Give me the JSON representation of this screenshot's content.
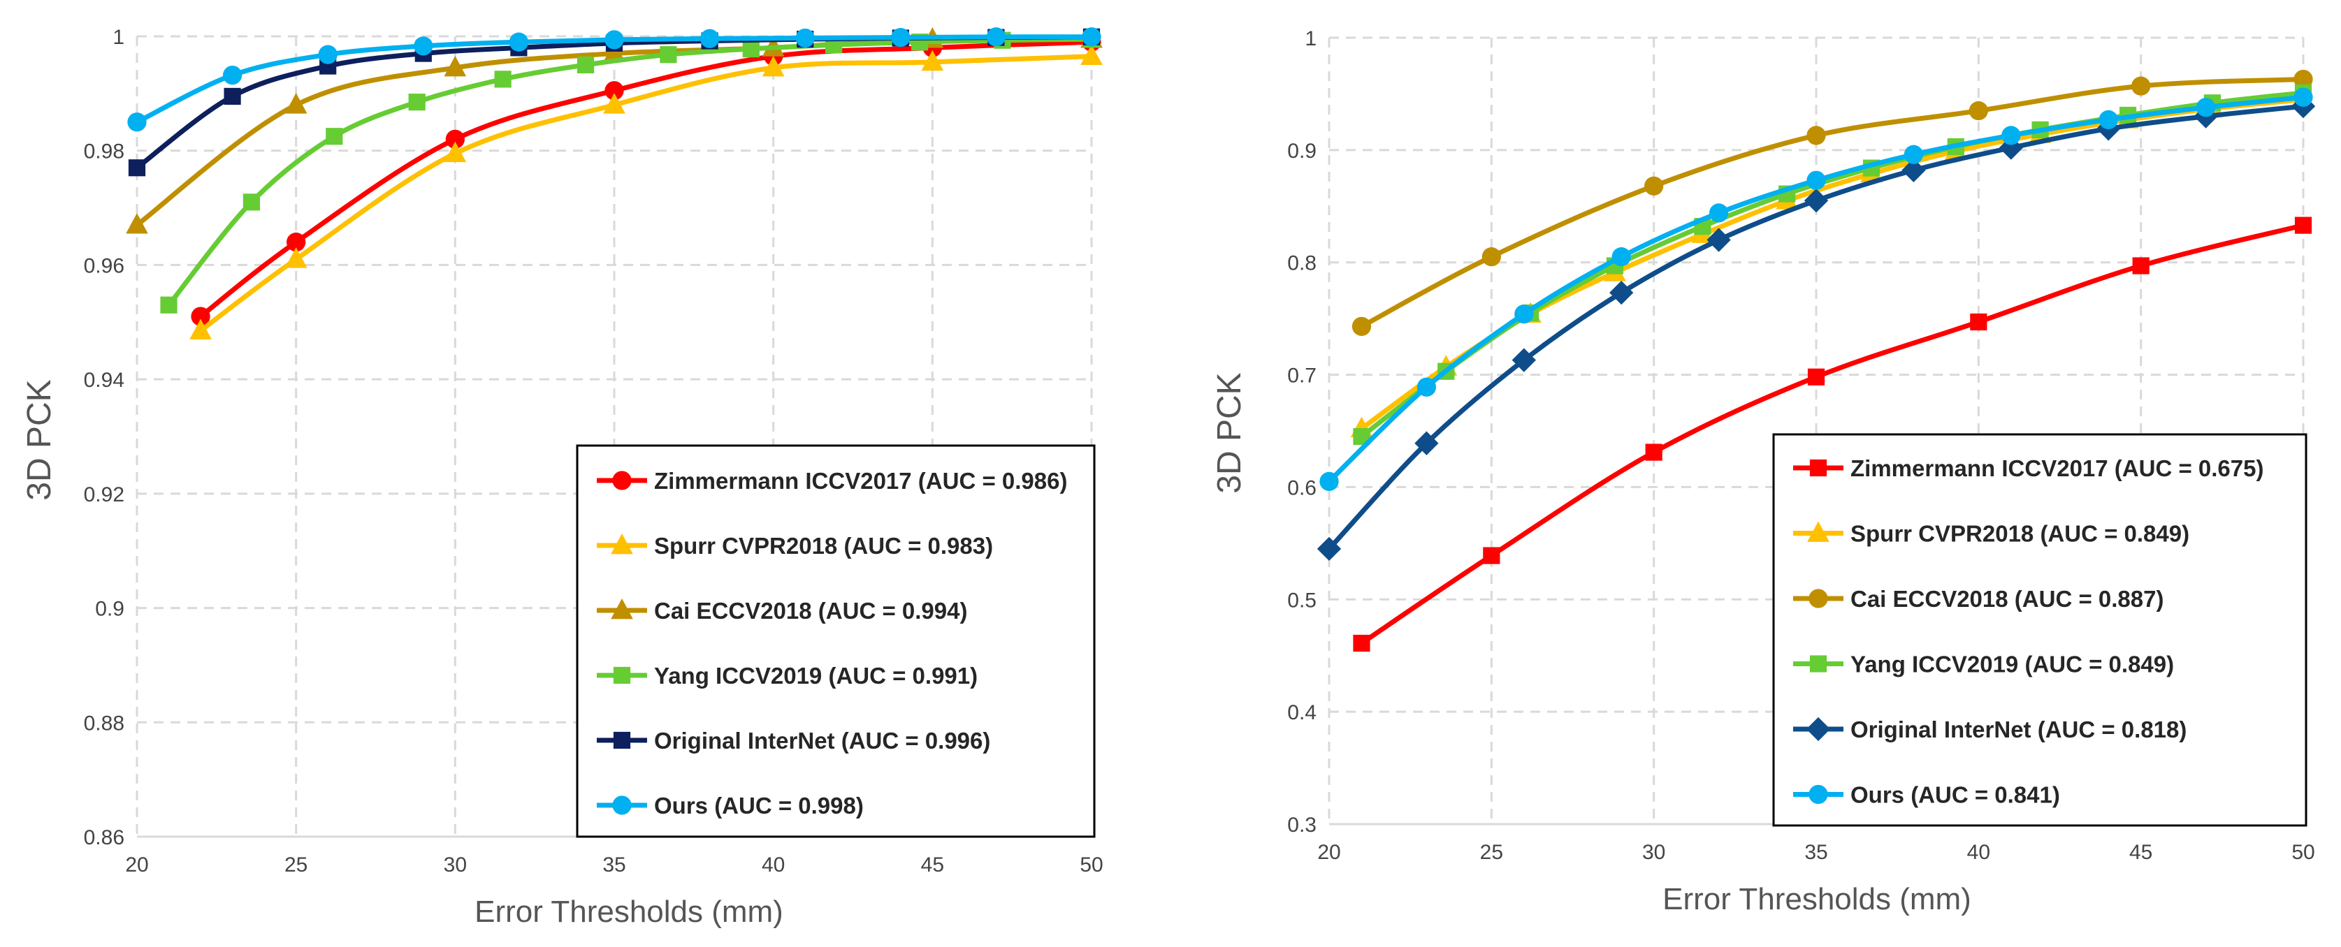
{
  "chart_data": [
    {
      "type": "line",
      "title": "",
      "xlabel": "Error Thresholds (mm)",
      "ylabel": "3D PCK",
      "xlim": [
        20,
        50
      ],
      "ylim": [
        0.86,
        1
      ],
      "xticks": [
        20,
        25,
        30,
        35,
        40,
        45,
        50
      ],
      "yticks": [
        0.86,
        0.88,
        0.9,
        0.92,
        0.94,
        0.96,
        0.98,
        1
      ],
      "ytick_labels": [
        "0.86",
        "0.88",
        "0.9",
        "0.92",
        "0.94",
        "0.96",
        "0.98",
        "1"
      ],
      "grid": true,
      "legend_position": "bottom-right",
      "series": [
        {
          "name": "Zimmermann  ICCV2017 (AUC = 0.986)",
          "color": "#ff0000",
          "marker": "circle",
          "x": [
            22,
            25,
            30,
            35,
            40,
            45,
            50
          ],
          "y": [
            0.951,
            0.964,
            0.982,
            0.9905,
            0.9965,
            0.998,
            0.999
          ]
        },
        {
          "name": "Spurr  CVPR2018 (AUC = 0.983)",
          "color": "#ffc000",
          "marker": "triangle",
          "x": [
            22,
            25,
            30,
            35,
            40,
            45,
            50
          ],
          "y": [
            0.9485,
            0.961,
            0.9795,
            0.988,
            0.9945,
            0.9955,
            0.9965
          ]
        },
        {
          "name": "Cai  ECCV2018 (AUC = 0.994)",
          "color": "#bf8f00",
          "marker": "triangle",
          "x": [
            20,
            25,
            30,
            35,
            40,
            45,
            50
          ],
          "y": [
            0.967,
            0.988,
            0.9945,
            0.997,
            0.998,
            0.9995,
            0.9995
          ]
        },
        {
          "name": "Yang  ICCV2019 (AUC = 0.991)",
          "color": "#66cc33",
          "marker": "square",
          "x": [
            21,
            23.6,
            26.2,
            28.8,
            31.5,
            34.1,
            36.7,
            39.3,
            41.9,
            44.6,
            47.2,
            50
          ],
          "y": [
            0.953,
            0.971,
            0.9825,
            0.9885,
            0.9925,
            0.995,
            0.9968,
            0.9978,
            0.9985,
            0.999,
            0.9993,
            0.9995
          ]
        },
        {
          "name": "Original InterNet (AUC = 0.996)",
          "color": "#0d1f5c",
          "marker": "square",
          "x": [
            20,
            23,
            26,
            29,
            32,
            35,
            38,
            41,
            44,
            47,
            50
          ],
          "y": [
            0.977,
            0.9895,
            0.9948,
            0.997,
            0.998,
            0.9988,
            0.9992,
            0.9995,
            0.9997,
            0.9998,
            0.9999
          ]
        },
        {
          "name": "Ours (AUC = 0.998)",
          "color": "#00b0f0",
          "marker": "circle",
          "x": [
            20,
            23,
            26,
            29,
            32,
            35,
            38,
            41,
            44,
            47,
            50
          ],
          "y": [
            0.985,
            0.9932,
            0.9968,
            0.9983,
            0.999,
            0.9994,
            0.9996,
            0.9997,
            0.9998,
            0.9999,
            0.9999
          ]
        }
      ]
    },
    {
      "type": "line",
      "title": "",
      "xlabel": "Error Thresholds (mm)",
      "ylabel": "3D PCK",
      "xlim": [
        20,
        50
      ],
      "ylim": [
        0.3,
        1
      ],
      "xticks": [
        20,
        25,
        30,
        35,
        40,
        45,
        50
      ],
      "yticks": [
        0.3,
        0.4,
        0.5,
        0.6,
        0.7,
        0.8,
        0.9,
        1
      ],
      "ytick_labels": [
        "0.3",
        "0.4",
        "0.5",
        "0.6",
        "0.7",
        "0.8",
        "0.9",
        "1"
      ],
      "grid": true,
      "legend_position": "bottom-right",
      "series": [
        {
          "name": "Zimmermann  ICCV2017 (AUC = 0.675)",
          "color": "#ff0000",
          "marker": "square",
          "x": [
            21,
            25,
            30,
            35,
            40,
            45,
            50
          ],
          "y": [
            0.461,
            0.539,
            0.631,
            0.698,
            0.747,
            0.797,
            0.833
          ]
        },
        {
          "name": "Spurr  CVPR2018 (AUC = 0.849)",
          "color": "#ffc000",
          "marker": "triangle",
          "x": [
            21,
            23.6,
            26.2,
            28.8,
            31.5,
            34.1,
            36.7,
            39.3,
            41.9,
            44.6,
            47.2,
            50
          ],
          "y": [
            0.652,
            0.707,
            0.754,
            0.791,
            0.825,
            0.855,
            0.879,
            0.899,
            0.914,
            0.927,
            0.937,
            0.945
          ]
        },
        {
          "name": "Cai  ECCV2018 (AUC = 0.887)",
          "color": "#bf8f00",
          "marker": "circle",
          "x": [
            21,
            25,
            30,
            35,
            40,
            45,
            50
          ],
          "y": [
            0.743,
            0.805,
            0.868,
            0.913,
            0.935,
            0.957,
            0.963
          ]
        },
        {
          "name": "Yang  ICCV2019 (AUC = 0.849)",
          "color": "#66cc33",
          "marker": "square",
          "x": [
            21,
            23.6,
            26.2,
            28.8,
            31.5,
            34.1,
            36.7,
            39.3,
            41.9,
            44.6,
            47.2,
            50
          ],
          "y": [
            0.645,
            0.703,
            0.755,
            0.797,
            0.832,
            0.861,
            0.884,
            0.903,
            0.918,
            0.931,
            0.942,
            0.951
          ]
        },
        {
          "name": "Original InterNet (AUC = 0.818)",
          "color": "#0e4d8a",
          "marker": "diamond",
          "x": [
            20,
            23,
            26,
            29,
            32,
            35,
            38,
            41,
            44,
            47,
            50
          ],
          "y": [
            0.545,
            0.639,
            0.713,
            0.773,
            0.82,
            0.855,
            0.882,
            0.902,
            0.919,
            0.93,
            0.939
          ]
        },
        {
          "name": "Ours (AUC = 0.841)",
          "color": "#00b0f0",
          "marker": "circle",
          "x": [
            20,
            23,
            26,
            29,
            32,
            35,
            38,
            41,
            44,
            47,
            50
          ],
          "y": [
            0.605,
            0.689,
            0.754,
            0.805,
            0.844,
            0.873,
            0.896,
            0.913,
            0.927,
            0.938,
            0.947
          ]
        }
      ]
    }
  ]
}
